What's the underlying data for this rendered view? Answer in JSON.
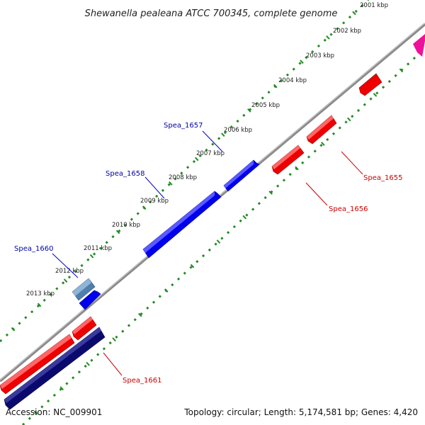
{
  "title": "Shewanella pealeana ATCC 700345, complete genome",
  "footer": {
    "accession": "Accession: NC_009901",
    "summary": "Topology: circular; Length: 5,174,581 bp; Genes: 4,420"
  },
  "ticks": [
    "2001 kbp",
    "2002 kbp",
    "2003 kbp",
    "2004 kbp",
    "2005 kbp",
    "2006 kbp",
    "2007 kbp",
    "2008 kbp",
    "2009 kbp",
    "2010 kbp",
    "2011 kbp",
    "2012 kbp",
    "2013 kbp"
  ],
  "genes": {
    "spea_1655": "Spea_1655",
    "spea_1656": "Spea_1656",
    "spea_1657": "Spea_1657",
    "spea_1658": "Spea_1658",
    "spea_1660": "Spea_1660",
    "spea_1661": "Spea_1661"
  },
  "colors": {
    "forward_gene": "#0000ee",
    "reverse_gene": "#ee0000",
    "forward_label": "#0000aa",
    "reverse_label": "#cc0000",
    "steelblue_gene": "#4f7fae",
    "navy_gene": "#0a0a6e",
    "pink_gene": "#ee1199",
    "backbone": "#8a8a8a",
    "dots": "#228b22"
  }
}
